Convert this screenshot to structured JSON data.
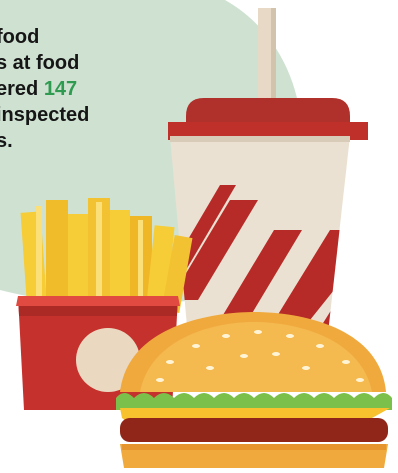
{
  "caption": {
    "line1": "food",
    "line2": "s at food",
    "line3_prefix": "ered ",
    "line3_stat": "147",
    "line4": "inspected",
    "line5": "s."
  },
  "colors": {
    "backdrop": "#cfe2d2",
    "stat_highlight": "#2e9b50",
    "cup_red": "#b62a27",
    "cup_lid_red": "#c0302b",
    "cup_body": "#ebe1d2",
    "straw": "#e7d9c6",
    "fries": "#f6cc37",
    "fries_box": "#c5322d",
    "bun": "#f0a93d",
    "lettuce": "#7bc04a",
    "cheese": "#f7c22d",
    "patty": "#8f2619"
  },
  "illustration": {
    "icons": [
      "soda-cup-icon",
      "french-fries-icon",
      "hamburger-icon"
    ]
  }
}
